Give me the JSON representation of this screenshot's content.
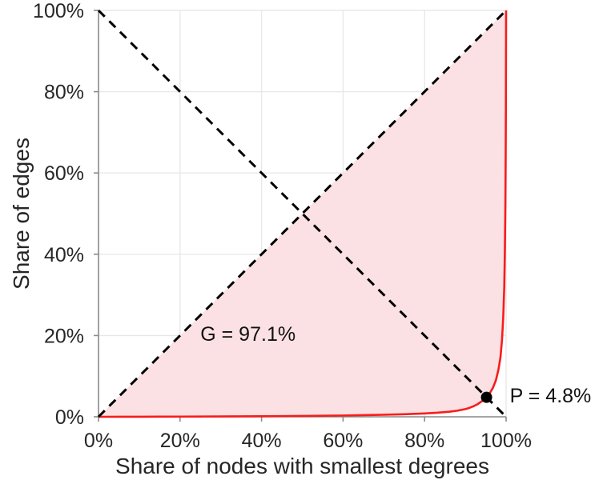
{
  "chart_data": {
    "type": "line",
    "title": "",
    "xlabel": "Share of nodes with smallest degrees",
    "ylabel": "Share of edges",
    "xlim": [
      0,
      100
    ],
    "ylim": [
      0,
      100
    ],
    "grid": true,
    "x_tick_values": [
      0,
      20,
      40,
      60,
      80,
      100
    ],
    "x_tick_labels": [
      "0%",
      "20%",
      "40%",
      "60%",
      "80%",
      "100%"
    ],
    "y_tick_values": [
      0,
      20,
      40,
      60,
      80,
      100
    ],
    "y_tick_labels": [
      "0%",
      "20%",
      "40%",
      "60%",
      "80%",
      "100%"
    ],
    "series": [
      {
        "name": "lorenz-curve",
        "color": "#f81c1c",
        "line_style": "solid",
        "line_width": 2.6,
        "x": [
          0,
          5,
          10,
          15,
          20,
          25,
          30,
          35,
          40,
          45,
          50,
          55,
          60,
          65,
          70,
          75,
          80,
          83,
          86,
          88,
          90,
          91,
          92,
          93,
          94,
          95.2,
          96,
          96.8,
          97.5,
          98.1,
          98.6,
          99,
          99.3,
          99.55,
          99.7,
          99.82,
          99.9,
          99.95,
          100
        ],
        "y": [
          0,
          0.01,
          0.02,
          0.03,
          0.05,
          0.07,
          0.09,
          0.11,
          0.14,
          0.17,
          0.21,
          0.26,
          0.32,
          0.4,
          0.5,
          0.63,
          0.82,
          1.0,
          1.25,
          1.5,
          1.9,
          2.2,
          2.6,
          3.1,
          3.8,
          4.8,
          5.8,
          7.2,
          9.0,
          11.5,
          14.5,
          19,
          24.5,
          32,
          41,
          52,
          65,
          78,
          100
        ]
      },
      {
        "name": "equality-diagonal",
        "color": "#000000",
        "line_style": "dashed",
        "line_width": 3,
        "x": [
          0,
          100
        ],
        "y": [
          0,
          100
        ]
      },
      {
        "name": "anti-diagonal",
        "color": "#000000",
        "line_style": "dashed",
        "line_width": 3,
        "x": [
          0,
          100
        ],
        "y": [
          100,
          0
        ]
      }
    ],
    "area_fill": {
      "name": "gini-area",
      "color": "#fbe1e3",
      "between": [
        "equality-diagonal",
        "lorenz-curve"
      ]
    },
    "marker": {
      "name": "P",
      "x": 95.2,
      "y": 4.8,
      "radius": 7,
      "color": "#000000"
    },
    "annotations": [
      {
        "id": "gini",
        "text": "G = 97.1%",
        "x": 25,
        "y": 20
      },
      {
        "id": "p",
        "text": "P = 4.8%",
        "x": 100.9,
        "y": 4.9
      }
    ],
    "style": {
      "axis_color": "#8c8c8c",
      "grid_color": "#e8e8e8",
      "text_color": "#262626",
      "background": "#ffffff"
    }
  }
}
